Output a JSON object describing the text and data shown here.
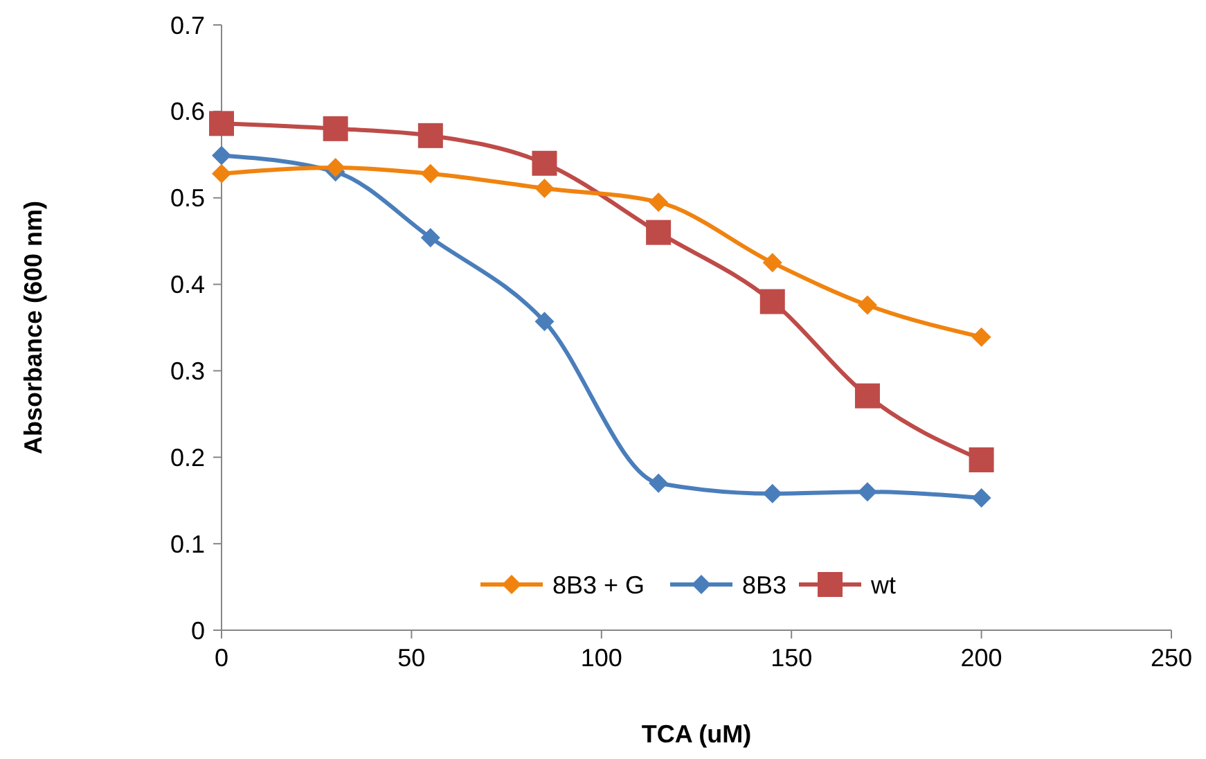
{
  "chart_data": {
    "type": "line",
    "xlabel": "TCA (uM)",
    "ylabel": "Absorbance (600 nm)",
    "xlim": [
      0,
      250
    ],
    "xticks": [
      0,
      50,
      100,
      150,
      200,
      250
    ],
    "ylim": [
      0,
      0.7
    ],
    "yticks": [
      0,
      0.1,
      0.2,
      0.3,
      0.4,
      0.5,
      0.6,
      0.7
    ],
    "x": [
      0,
      30,
      55,
      85,
      115,
      145,
      170,
      200
    ],
    "legend": "bottom",
    "grid": false,
    "series": [
      {
        "name": "8B3 + G",
        "color": "#f0830f",
        "marker": "diamond",
        "values": [
          0.528,
          0.535,
          0.528,
          0.511,
          0.495,
          0.425,
          0.376,
          0.339
        ]
      },
      {
        "name": "8B3",
        "color": "#4a7ebb",
        "marker": "diamond",
        "values": [
          0.549,
          0.53,
          0.454,
          0.357,
          0.17,
          0.158,
          0.16,
          0.153
        ]
      },
      {
        "name": "wt",
        "color": "#be4b48",
        "marker": "square",
        "values": [
          0.586,
          0.58,
          0.572,
          0.54,
          0.46,
          0.38,
          0.271,
          0.197
        ]
      }
    ]
  }
}
